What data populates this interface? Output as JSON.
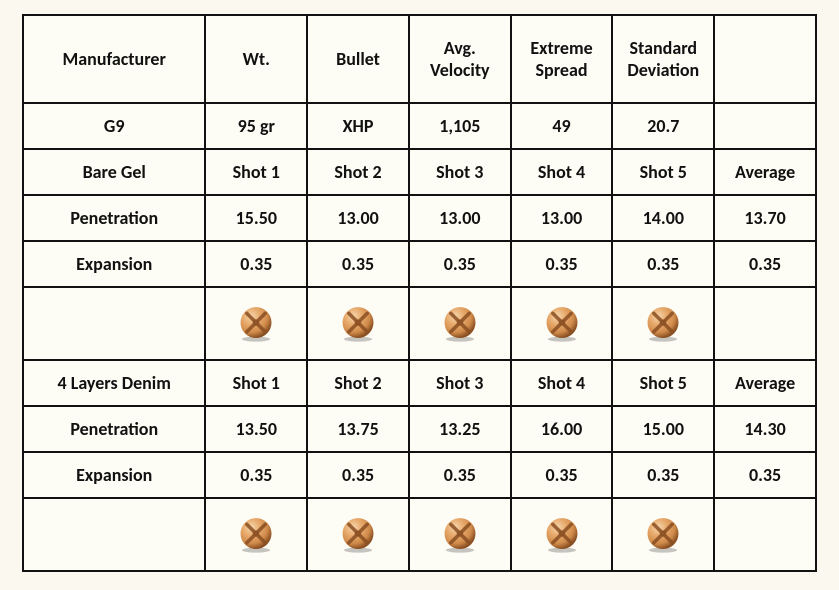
{
  "colors": {
    "background": "#fbf9ef",
    "cell_bg": "#fdfcf5",
    "border": "#111111",
    "text": "#111111",
    "bullet_light": "#e7a96b",
    "bullet_mid": "#cf8a4a",
    "bullet_dark": "#8a4f22",
    "bullet_highlight": "#f6d6ad"
  },
  "header": {
    "manufacturer": "Manufacturer",
    "wt": "Wt.",
    "bullet": "Bullet",
    "avg_velocity_l1": "Avg.",
    "avg_velocity_l2": "Velocity",
    "extreme_spread_l1": "Extreme",
    "extreme_spread_l2": "Spread",
    "std_dev_l1": "Standard",
    "std_dev_l2": "Deviation"
  },
  "ammo": {
    "manufacturer": "G9",
    "wt": "95 gr",
    "bullet": "XHP",
    "avg_velocity": "1,105",
    "extreme_spread": "49",
    "std_dev": "20.7"
  },
  "labels": {
    "bare_gel": "Bare Gel",
    "denim": "4 Layers Denim",
    "penetration": "Penetration",
    "expansion": "Expansion",
    "shot1": "Shot 1",
    "shot2": "Shot 2",
    "shot3": "Shot 3",
    "shot4": "Shot 4",
    "shot5": "Shot 5",
    "average": "Average"
  },
  "bare_gel": {
    "penetration": {
      "s1": "15.50",
      "s2": "13.00",
      "s3": "13.00",
      "s4": "13.00",
      "s5": "14.00",
      "avg": "13.70"
    },
    "expansion": {
      "s1": "0.35",
      "s2": "0.35",
      "s3": "0.35",
      "s4": "0.35",
      "s5": "0.35",
      "avg": "0.35"
    }
  },
  "denim": {
    "penetration": {
      "s1": "13.50",
      "s2": "13.75",
      "s3": "13.25",
      "s4": "16.00",
      "s5": "15.00",
      "avg": "14.30"
    },
    "expansion": {
      "s1": "0.35",
      "s2": "0.35",
      "s3": "0.35",
      "s4": "0.35",
      "s5": "0.35",
      "avg": "0.35"
    }
  },
  "bullet_icon": {
    "size": 36
  }
}
